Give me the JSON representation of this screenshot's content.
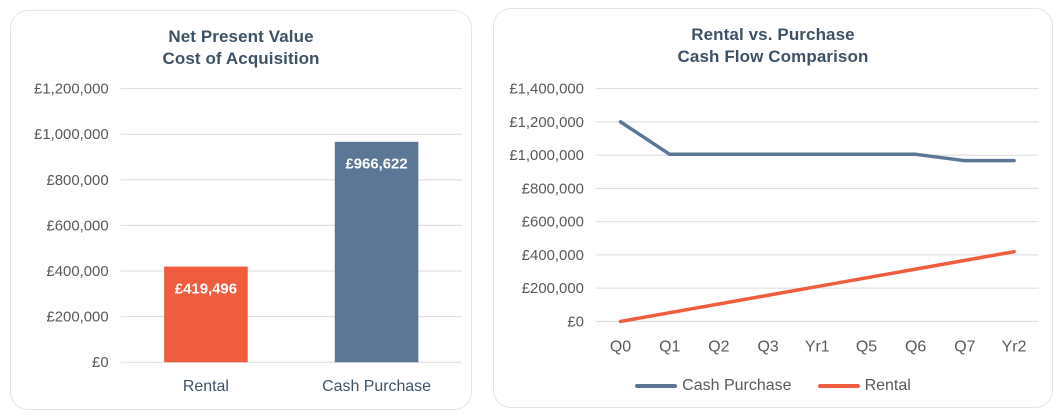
{
  "theme": {
    "background": "#FFFFFF",
    "card_border": "#DFE5EE",
    "title_color": "#3E5266",
    "tick_color": "#595959",
    "grid_color": "#DBDBDB",
    "accent_orange": "#F05C3E",
    "accent_blue": "#5B7795",
    "bar_label_color": "#FFFFFF"
  },
  "chart_data": [
    {
      "type": "bar",
      "title": "Net Present Value\nCost of Acquisition",
      "categories": [
        "Rental",
        "Cash Purchase"
      ],
      "values": [
        419496,
        966622
      ],
      "bar_labels": [
        "£419,496",
        "£966,622"
      ],
      "bar_colors": [
        "#F05C3E",
        "#5B7795"
      ],
      "xlabel": "",
      "ylabel": "",
      "ylim": [
        0,
        1200000
      ],
      "y_tick_step": 200000,
      "y_tick_labels": [
        "£0",
        "£200,000",
        "£400,000",
        "£600,000",
        "£800,000",
        "£1,000,000",
        "£1,200,000"
      ],
      "grid": true,
      "legend_position": "none"
    },
    {
      "type": "line",
      "title": "Rental vs. Purchase\nCash Flow Comparison",
      "categories": [
        "Q0",
        "Q1",
        "Q2",
        "Q3",
        "Yr1",
        "Q5",
        "Q6",
        "Q7",
        "Yr2"
      ],
      "series": [
        {
          "name": "Cash Purchase",
          "color": "#5B7795",
          "values": [
            1200000,
            1005000,
            1005000,
            1005000,
            1005000,
            1005000,
            1005000,
            966622,
            966622
          ]
        },
        {
          "name": "Rental",
          "color": "#F05C3E",
          "values": [
            0,
            52437,
            104874,
            157311,
            209748,
            262185,
            314622,
            367059,
            419496
          ]
        }
      ],
      "xlabel": "",
      "ylabel": "",
      "ylim": [
        0,
        1400000
      ],
      "y_tick_step": 200000,
      "y_tick_labels": [
        "£0",
        "£200,000",
        "£400,000",
        "£600,000",
        "£800,000",
        "£1,000,000",
        "£1,200,000",
        "£1,400,000"
      ],
      "grid": true,
      "legend_position": "bottom"
    }
  ]
}
